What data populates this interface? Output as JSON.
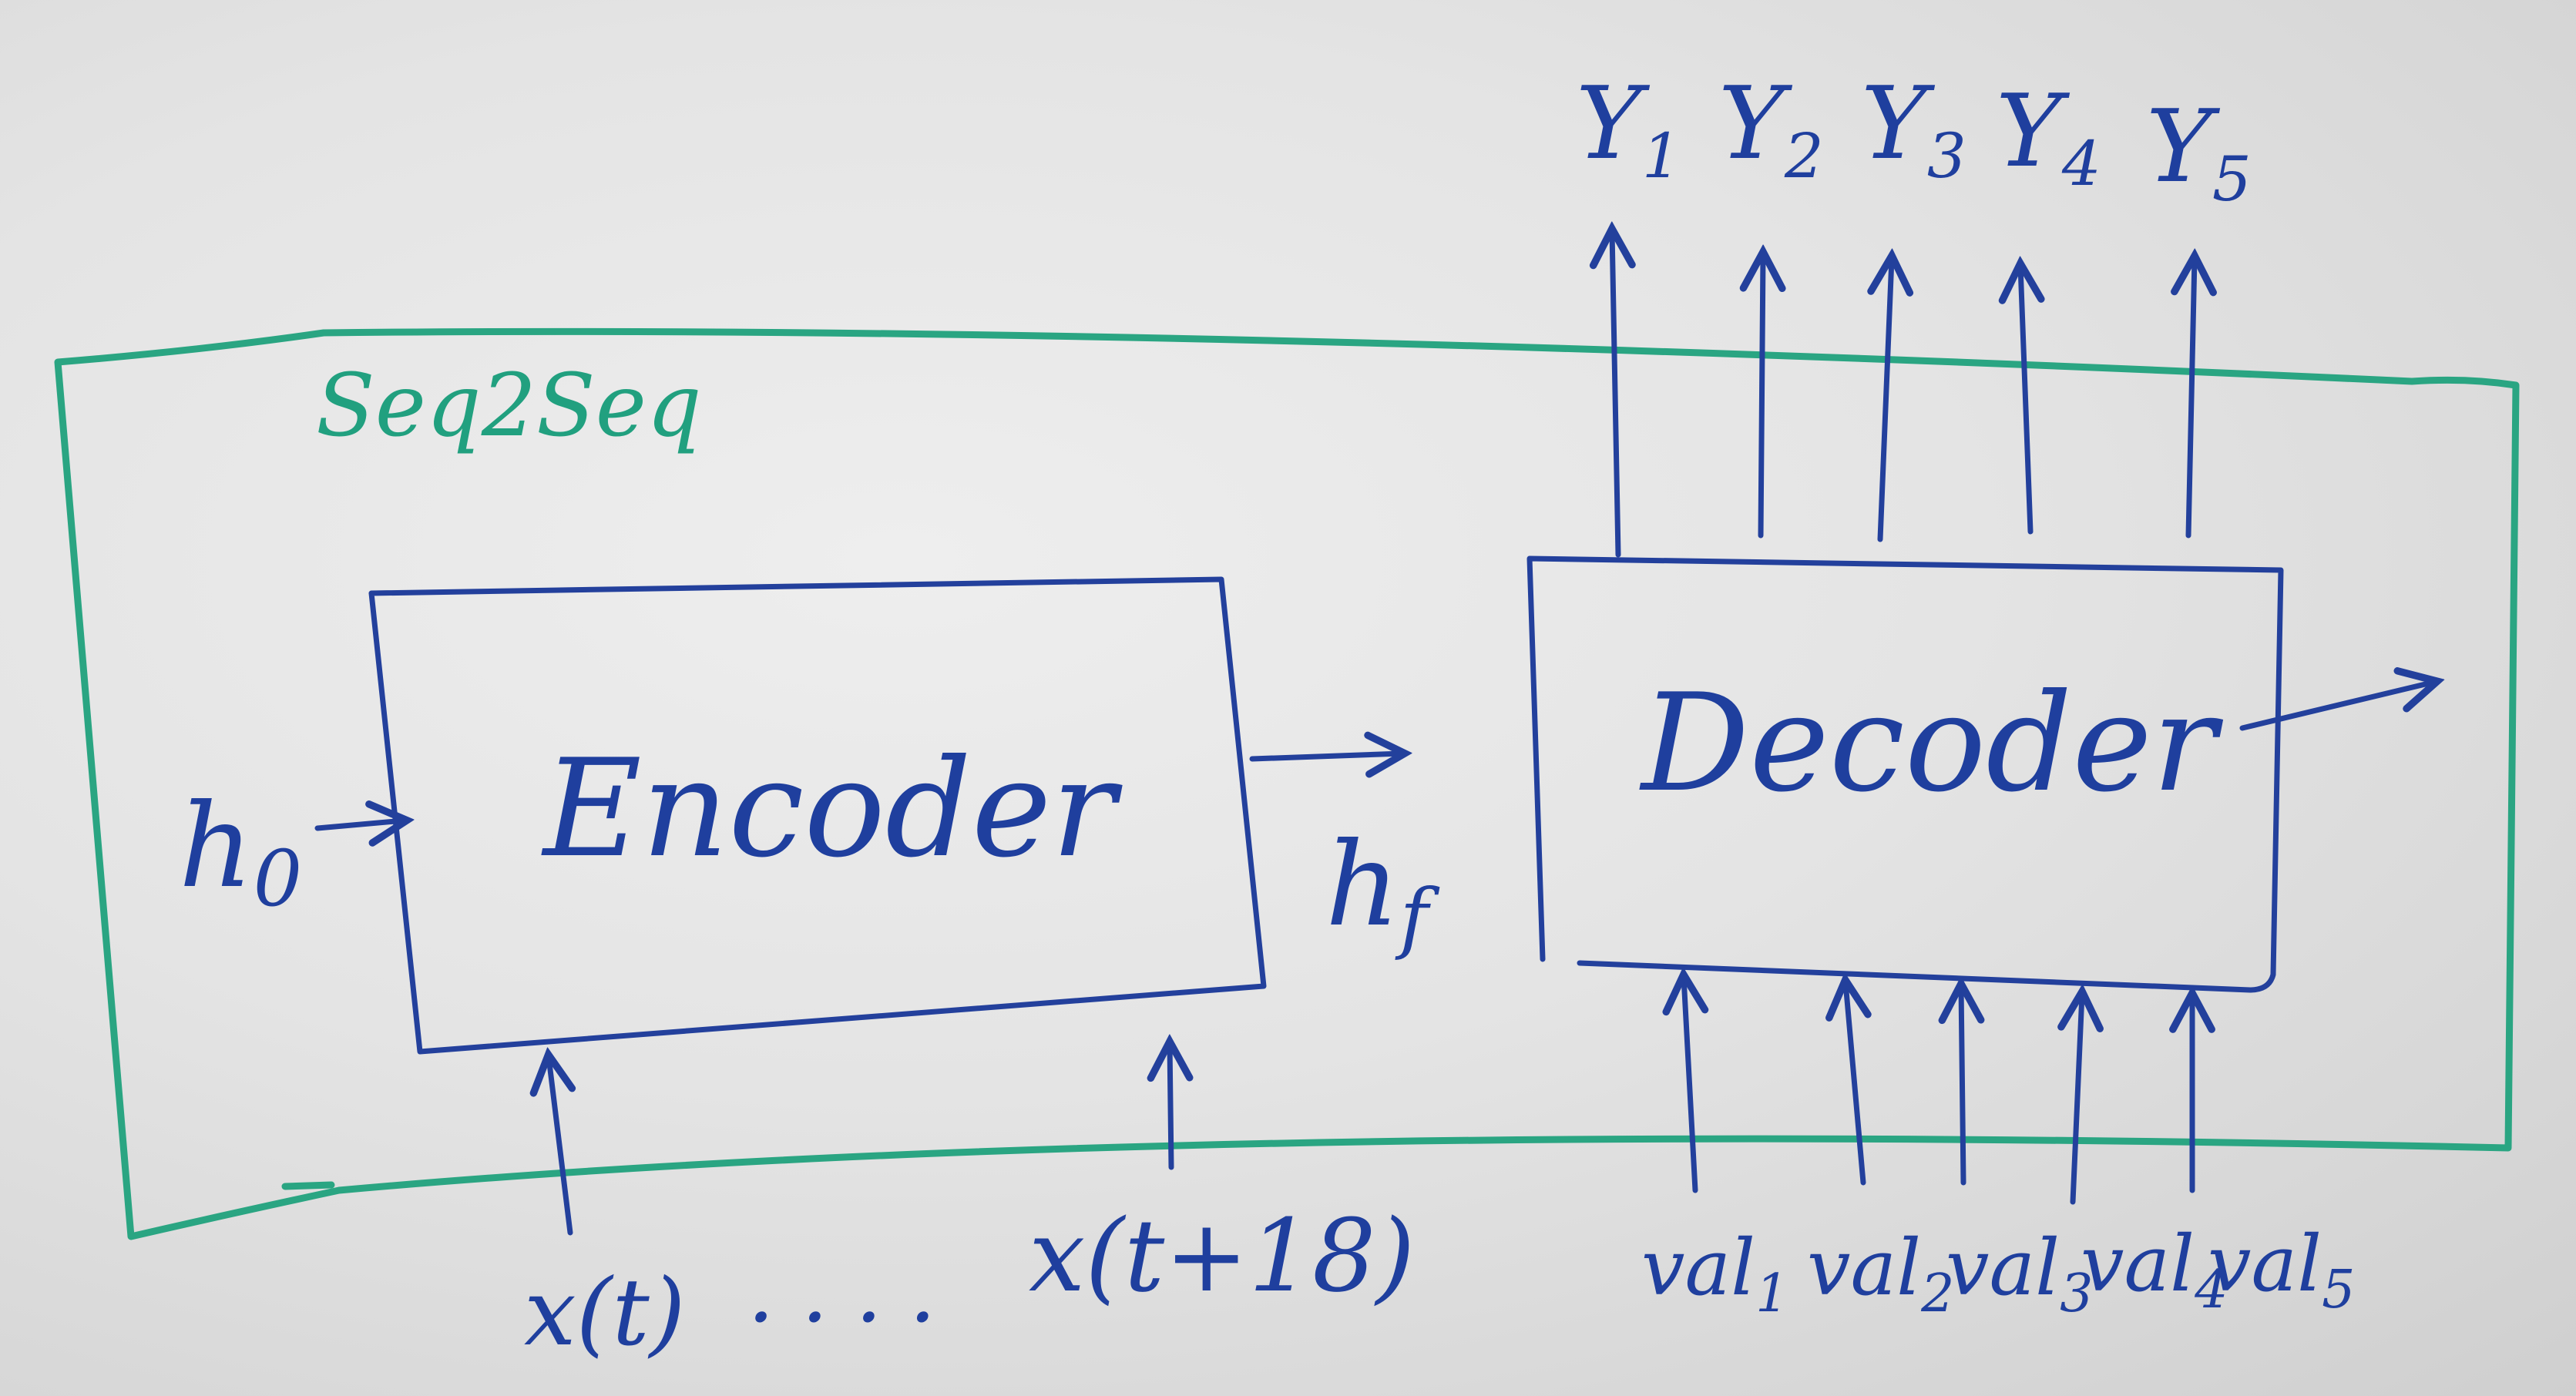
{
  "frame": {
    "label": "Seq2Seq"
  },
  "encoder": {
    "label": "Encoder",
    "initial_state": "h",
    "initial_state_subscript": "0",
    "final_state": "h",
    "final_state_subscript": "f",
    "inputs": {
      "first": "x(t)",
      "ellipsis": ". . . .",
      "last": "x(t+18)"
    }
  },
  "decoder": {
    "label": "Decoder",
    "outputs": [
      {
        "base": "Y",
        "sub": "1"
      },
      {
        "base": "Y",
        "sub": "2"
      },
      {
        "base": "Y",
        "sub": "3"
      },
      {
        "base": "Y",
        "sub": "4"
      },
      {
        "base": "Y",
        "sub": "5"
      }
    ],
    "inputs": [
      {
        "base": "val",
        "sub": "1"
      },
      {
        "base": "val",
        "sub": "2"
      },
      {
        "base": "val",
        "sub": "3"
      },
      {
        "base": "val",
        "sub": "4"
      },
      {
        "base": "val",
        "sub": "5"
      }
    ]
  },
  "colors": {
    "blue_ink": "#23409c",
    "green_ink": "#2aa582",
    "board": "#e4e4e4"
  }
}
